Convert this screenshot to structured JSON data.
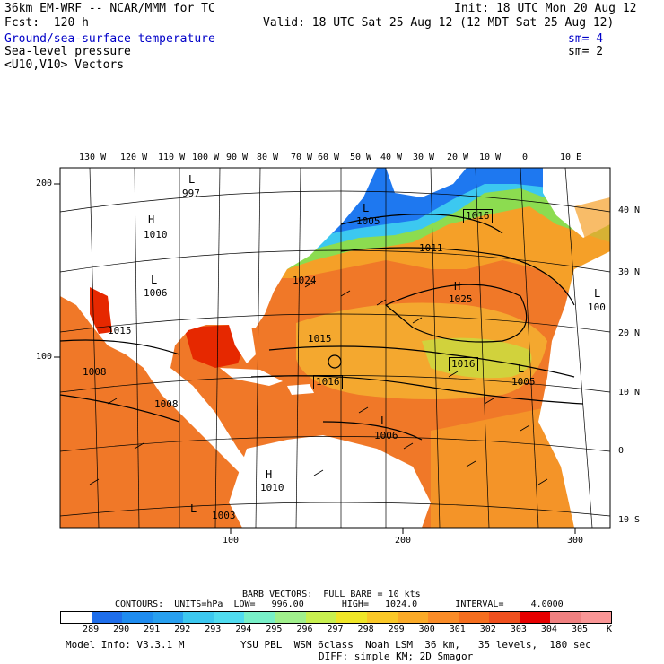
{
  "header": {
    "model": "36km EM-WRF -- NCAR/MMM for TC",
    "init": "Init: 18 UTC Mon 20 Aug 12",
    "fcst": "Fcst:  120 h",
    "valid": "Valid: 18 UTC Sat 25 Aug 12 (12 MDT Sat 25 Aug 12)",
    "field1": "Ground/sea-surface temperature",
    "field1_sm": "sm= 4",
    "field2": "Sea-level pressure",
    "field2_sm": "sm= 2",
    "field3": "<U10,V10> Vectors"
  },
  "map": {
    "lon_labels": [
      "130 W",
      "120 W",
      "110 W",
      "100 W",
      "90 W",
      "80 W",
      "70 W",
      "60 W",
      "50 W",
      "40 W",
      "30 W",
      "20 W",
      "10 W",
      "0",
      "10 E"
    ],
    "lat_labels_right": [
      "40 N",
      "30 N",
      "20 N",
      "10 N",
      "0",
      "10 S"
    ],
    "grid_left_labels": [
      "200",
      "100"
    ],
    "grid_bottom_labels": [
      "100",
      "200",
      "300"
    ],
    "pressure_labels": {
      "h1": "H",
      "h1v": "1010",
      "h2": "H",
      "h2v": "1025",
      "h3": "H",
      "h3v": "1010",
      "l1": "L",
      "l1v": "997",
      "l2": "L",
      "l2v": "1005",
      "l3": "L",
      "l3v": "1006",
      "l4": "L",
      "l4v": "1005",
      "l5": "L",
      "l5v": "100",
      "l6": "L",
      "l6v": "1006",
      "l7": "L",
      "l7v": "1003",
      "c1": "1015",
      "c2": "1016",
      "c3": "1016",
      "c4": "1016",
      "c5": "1011",
      "c6": "1024",
      "c7": "1008",
      "c8": "1008",
      "c9": "1015",
      "c10": "1005"
    }
  },
  "footer": {
    "barb": "BARB VECTORS:  FULL BARB = 10 kts",
    "contours": "CONTOURS:  UNITS=hPa  LOW=   996.00       HIGH=   1024.0       INTERVAL=     4.0000",
    "scale_values": [
      "289",
      "290",
      "291",
      "292",
      "293",
      "294",
      "295",
      "296",
      "297",
      "298",
      "299",
      "300",
      "301",
      "302",
      "303",
      "304",
      "305"
    ],
    "scale_unit": "K",
    "scale_colors": [
      "#ffffff",
      "#1e6eeb",
      "#1e8cf0",
      "#28a0f0",
      "#3cc8f0",
      "#50dcf0",
      "#78f0c8",
      "#a0f08c",
      "#c8f050",
      "#f0e628",
      "#fac828",
      "#faaa28",
      "#fa8c28",
      "#f56e1e",
      "#f0501e",
      "#e60000",
      "#f08080",
      "#fa9696"
    ],
    "model_info": "Model Info: V3.3.1 M",
    "physics": "YSU PBL  WSM 6class  Noah LSM  36 km,   35 levels,  180 sec",
    "diff": "DIFF: simple KM; 2D Smagor",
    "colors": {
      "ocean_warm": "#f07828",
      "ocean_hot": "#e62800",
      "ocean_mid": "#f5a028",
      "ocean_cool": "#8cdc50",
      "ocean_cold": "#1e78f0",
      "land": "#ffffff"
    }
  }
}
